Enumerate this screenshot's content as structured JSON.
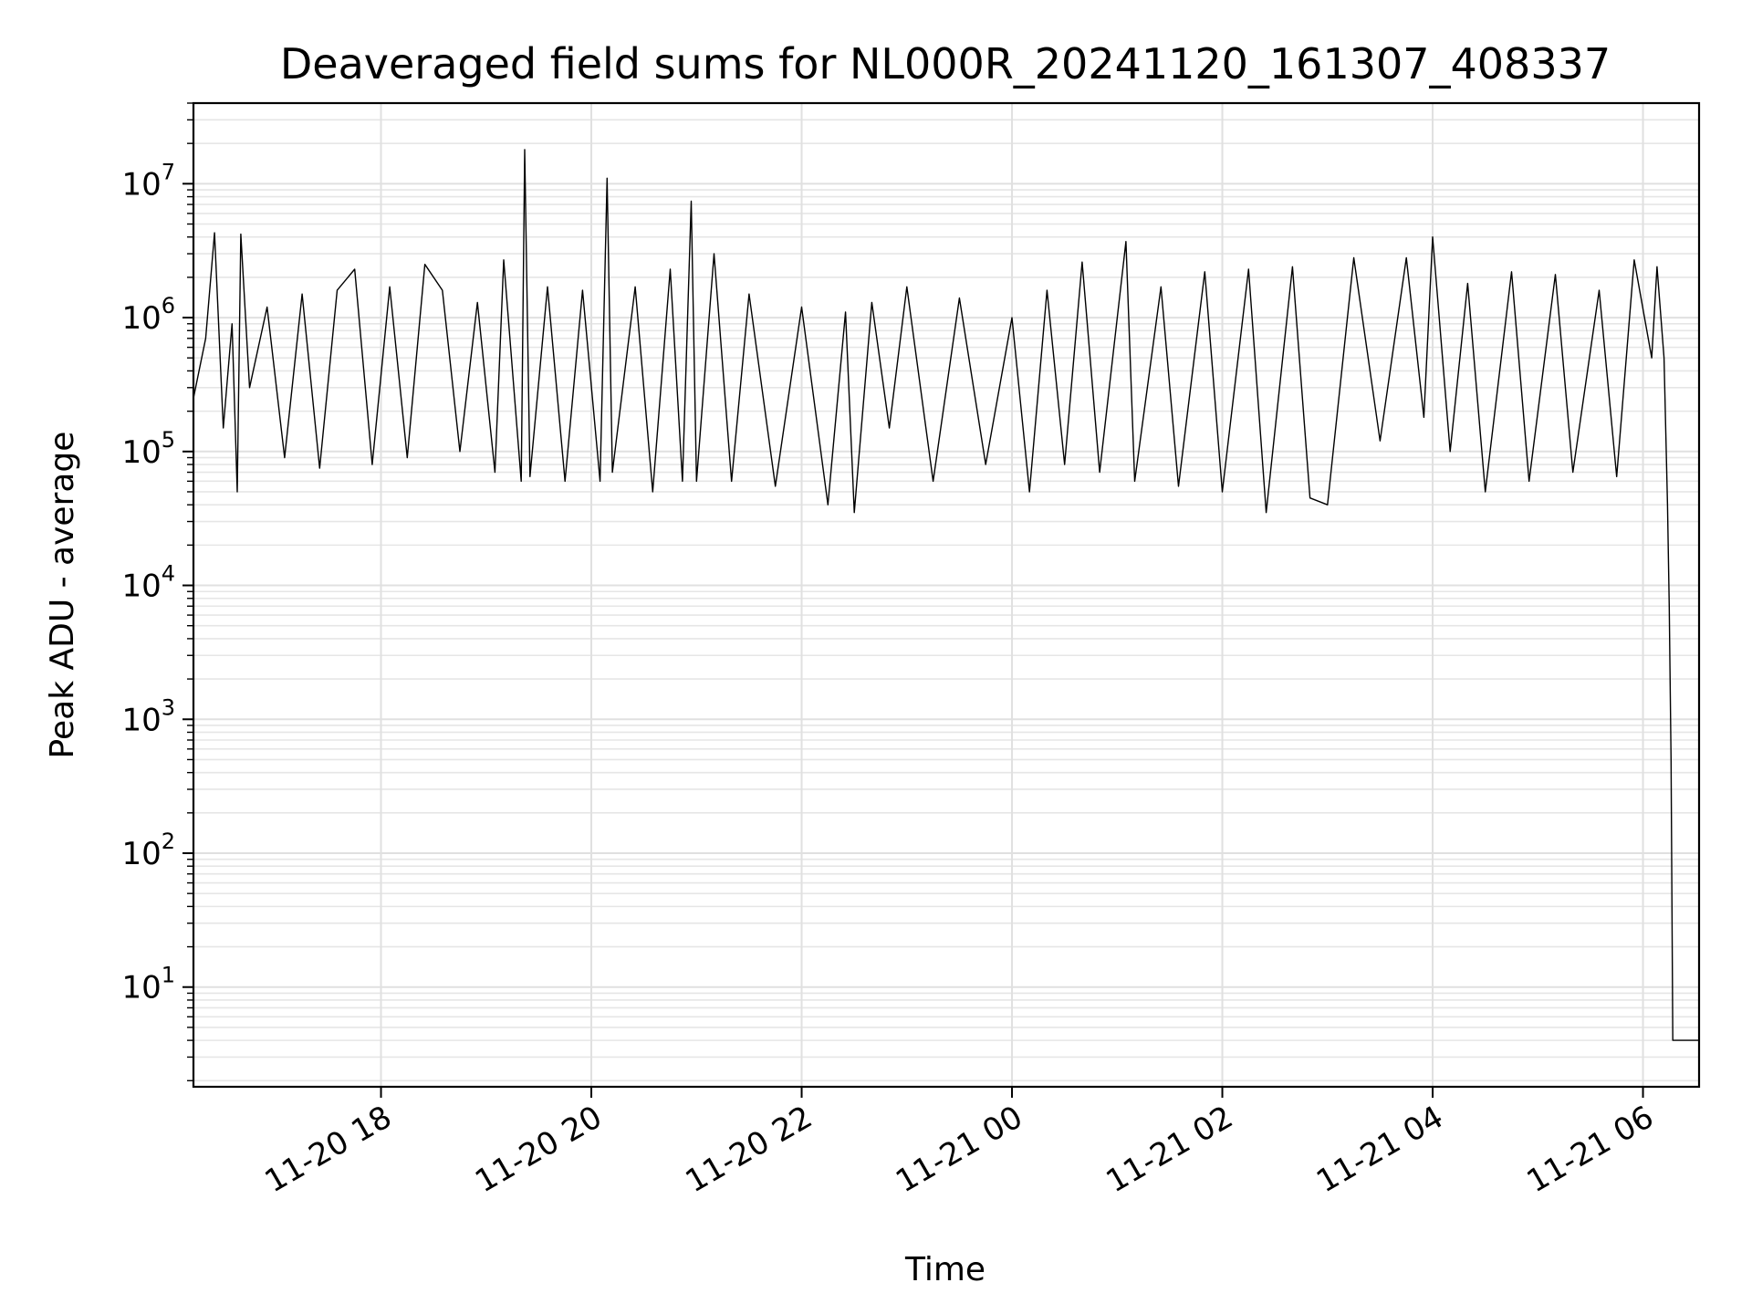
{
  "chart_data": {
    "type": "line",
    "title": "Deaveraged field sums for NL000R_20241120_161307_408337",
    "xlabel": "Time",
    "ylabel": "Peak ADU - average",
    "xscale": "time",
    "yscale": "log",
    "grid": true,
    "legend": "none",
    "xlim": [
      "2024-11-20 16:13",
      "2024-11-21 06:32"
    ],
    "ylim": [
      1.8,
      40000000
    ],
    "x_ticks": [
      {
        "time": "2024-11-20 18:00",
        "label": "11-20 18"
      },
      {
        "time": "2024-11-20 20:00",
        "label": "11-20 20"
      },
      {
        "time": "2024-11-20 22:00",
        "label": "11-20 22"
      },
      {
        "time": "2024-11-21 00:00",
        "label": "11-21 00"
      },
      {
        "time": "2024-11-21 02:00",
        "label": "11-21 02"
      },
      {
        "time": "2024-11-21 04:00",
        "label": "11-21 04"
      },
      {
        "time": "2024-11-21 06:00",
        "label": "11-21 06"
      }
    ],
    "y_ticks": [
      {
        "value": 10,
        "base": "10",
        "exp": "1"
      },
      {
        "value": 100,
        "base": "10",
        "exp": "2"
      },
      {
        "value": 1000,
        "base": "10",
        "exp": "3"
      },
      {
        "value": 10000,
        "base": "10",
        "exp": "4"
      },
      {
        "value": 100000,
        "base": "10",
        "exp": "5"
      },
      {
        "value": 1000000,
        "base": "10",
        "exp": "6"
      },
      {
        "value": 10000000,
        "base": "10",
        "exp": "7"
      }
    ],
    "series": [
      {
        "color": "#000000",
        "points": [
          [
            "2024-11-20 16:13",
            250000
          ],
          [
            "2024-11-20 16:20",
            700000
          ],
          [
            "2024-11-20 16:25",
            4300000
          ],
          [
            "2024-11-20 16:30",
            150000
          ],
          [
            "2024-11-20 16:35",
            900000
          ],
          [
            "2024-11-20 16:38",
            50000
          ],
          [
            "2024-11-20 16:40",
            4200000
          ],
          [
            "2024-11-20 16:45",
            300000
          ],
          [
            "2024-11-20 16:55",
            1200000
          ],
          [
            "2024-11-20 17:05",
            90000
          ],
          [
            "2024-11-20 17:15",
            1500000
          ],
          [
            "2024-11-20 17:25",
            75000
          ],
          [
            "2024-11-20 17:35",
            1600000
          ],
          [
            "2024-11-20 17:45",
            2300000
          ],
          [
            "2024-11-20 17:55",
            80000
          ],
          [
            "2024-11-20 18:05",
            1700000
          ],
          [
            "2024-11-20 18:15",
            90000
          ],
          [
            "2024-11-20 18:25",
            2500000
          ],
          [
            "2024-11-20 18:35",
            1600000
          ],
          [
            "2024-11-20 18:45",
            100000
          ],
          [
            "2024-11-20 18:55",
            1300000
          ],
          [
            "2024-11-20 19:05",
            70000
          ],
          [
            "2024-11-20 19:10",
            2700000
          ],
          [
            "2024-11-20 19:20",
            60000
          ],
          [
            "2024-11-20 19:22",
            18000000
          ],
          [
            "2024-11-20 19:25",
            65000
          ],
          [
            "2024-11-20 19:35",
            1700000
          ],
          [
            "2024-11-20 19:45",
            60000
          ],
          [
            "2024-11-20 19:55",
            1600000
          ],
          [
            "2024-11-20 20:05",
            60000
          ],
          [
            "2024-11-20 20:09",
            11000000
          ],
          [
            "2024-11-20 20:12",
            70000
          ],
          [
            "2024-11-20 20:25",
            1700000
          ],
          [
            "2024-11-20 20:35",
            50000
          ],
          [
            "2024-11-20 20:45",
            2300000
          ],
          [
            "2024-11-20 20:52",
            60000
          ],
          [
            "2024-11-20 20:57",
            7400000
          ],
          [
            "2024-11-20 21:00",
            60000
          ],
          [
            "2024-11-20 21:10",
            3000000
          ],
          [
            "2024-11-20 21:20",
            60000
          ],
          [
            "2024-11-20 21:30",
            1500000
          ],
          [
            "2024-11-20 21:45",
            55000
          ],
          [
            "2024-11-20 22:00",
            1200000
          ],
          [
            "2024-11-20 22:15",
            40000
          ],
          [
            "2024-11-20 22:25",
            1100000
          ],
          [
            "2024-11-20 22:30",
            35000
          ],
          [
            "2024-11-20 22:40",
            1300000
          ],
          [
            "2024-11-20 22:50",
            150000
          ],
          [
            "2024-11-20 23:00",
            1700000
          ],
          [
            "2024-11-20 23:15",
            60000
          ],
          [
            "2024-11-20 23:30",
            1400000
          ],
          [
            "2024-11-20 23:45",
            80000
          ],
          [
            "2024-11-21 00:00",
            1000000
          ],
          [
            "2024-11-21 00:10",
            50000
          ],
          [
            "2024-11-21 00:20",
            1600000
          ],
          [
            "2024-11-21 00:30",
            80000
          ],
          [
            "2024-11-21 00:40",
            2600000
          ],
          [
            "2024-11-21 00:50",
            70000
          ],
          [
            "2024-11-21 01:05",
            3700000
          ],
          [
            "2024-11-21 01:10",
            60000
          ],
          [
            "2024-11-21 01:25",
            1700000
          ],
          [
            "2024-11-21 01:35",
            55000
          ],
          [
            "2024-11-21 01:50",
            2200000
          ],
          [
            "2024-11-21 02:00",
            50000
          ],
          [
            "2024-11-21 02:15",
            2300000
          ],
          [
            "2024-11-21 02:25",
            35000
          ],
          [
            "2024-11-21 02:40",
            2400000
          ],
          [
            "2024-11-21 02:50",
            45000
          ],
          [
            "2024-11-21 03:00",
            40000
          ],
          [
            "2024-11-21 03:15",
            2800000
          ],
          [
            "2024-11-21 03:30",
            120000
          ],
          [
            "2024-11-21 03:45",
            2800000
          ],
          [
            "2024-11-21 03:55",
            180000
          ],
          [
            "2024-11-21 04:00",
            4000000
          ],
          [
            "2024-11-21 04:10",
            100000
          ],
          [
            "2024-11-21 04:20",
            1800000
          ],
          [
            "2024-11-21 04:30",
            50000
          ],
          [
            "2024-11-21 04:45",
            2200000
          ],
          [
            "2024-11-21 04:55",
            60000
          ],
          [
            "2024-11-21 05:10",
            2100000
          ],
          [
            "2024-11-21 05:20",
            70000
          ],
          [
            "2024-11-21 05:35",
            1600000
          ],
          [
            "2024-11-21 05:45",
            65000
          ],
          [
            "2024-11-21 05:55",
            2700000
          ],
          [
            "2024-11-21 06:05",
            500000
          ],
          [
            "2024-11-21 06:08",
            2400000
          ],
          [
            "2024-11-21 06:12",
            500000
          ],
          [
            "2024-11-21 06:14",
            40000
          ],
          [
            "2024-11-21 06:15",
            7000
          ],
          [
            "2024-11-21 06:16",
            500
          ],
          [
            "2024-11-21 06:17",
            4
          ],
          [
            "2024-11-21 06:32",
            4
          ]
        ]
      }
    ]
  }
}
